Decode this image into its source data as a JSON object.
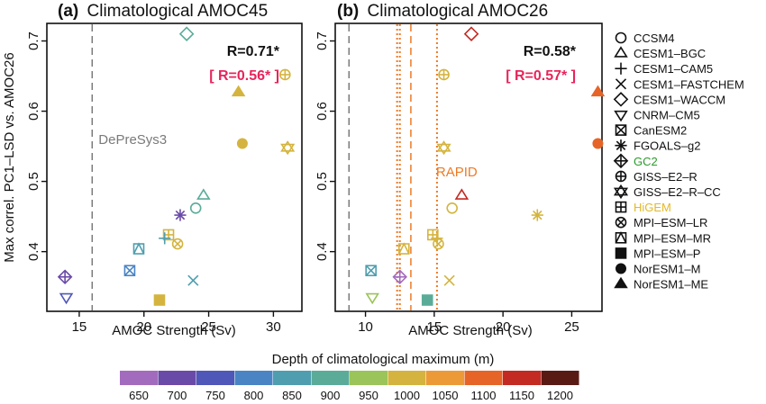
{
  "colors": {
    "depth_scale": {
      "650": "#a36bbd",
      "700": "#6a4aa8",
      "750": "#4f58b8",
      "800": "#4a84c4",
      "850": "#4f9eaf",
      "900": "#5aac99",
      "950": "#9bc45a",
      "1000": "#d4b43e",
      "1050": "#ec9a38",
      "1100": "#e66428",
      "1150": "#c22a22",
      "1200": "#5a1a14"
    },
    "annotation_obs": "#ee7a24",
    "annotation_model": "#7a7a7a",
    "r_bracket": "#e8245a",
    "gc2_label": "#2b9a2b",
    "higem_label": "#e2b82a"
  },
  "y_axis_label": "Max correl. PC1–LSD vs. AMOC26",
  "colorbar": {
    "title": "Depth of climatological maximum (m)",
    "ticks": [
      "650",
      "700",
      "750",
      "800",
      "850",
      "900",
      "950",
      "1000",
      "1050",
      "1100",
      "1150",
      "1200"
    ]
  },
  "legend": [
    {
      "name": "CCSM4",
      "marker": "circle-open",
      "label_color": "#111"
    },
    {
      "name": "CESM1–BGC",
      "marker": "triangle-open",
      "label_color": "#111"
    },
    {
      "name": "CESM1–CAM5",
      "marker": "plus",
      "label_color": "#111"
    },
    {
      "name": "CESM1–FASTCHEM",
      "marker": "cross",
      "label_color": "#111"
    },
    {
      "name": "CESM1–WACCM",
      "marker": "diamond-open",
      "label_color": "#111"
    },
    {
      "name": "CNRM–CM5",
      "marker": "triangle-down-open",
      "label_color": "#111"
    },
    {
      "name": "CanESM2",
      "marker": "square-cross",
      "label_color": "#111"
    },
    {
      "name": "FGOALS–g2",
      "marker": "asterisk",
      "label_color": "#111"
    },
    {
      "name": "GC2",
      "marker": "diamond-plus",
      "label_color": "#2b9a2b"
    },
    {
      "name": "GISS–E2–R",
      "marker": "circle-plus",
      "label_color": "#111"
    },
    {
      "name": "GISS–E2–R–CC",
      "marker": "star-of-david",
      "label_color": "#111"
    },
    {
      "name": "HiGEM",
      "marker": "square-plus",
      "label_color": "#e2b82a"
    },
    {
      "name": "MPI–ESM–LR",
      "marker": "circle-cross",
      "label_color": "#111"
    },
    {
      "name": "MPI–ESM–MR",
      "marker": "square-triangle",
      "label_color": "#111"
    },
    {
      "name": "MPI–ESM–P",
      "marker": "square-filled",
      "label_color": "#111"
    },
    {
      "name": "NorESM1–M",
      "marker": "circle-filled",
      "label_color": "#111"
    },
    {
      "name": "NorESM1–ME",
      "marker": "triangle-filled",
      "label_color": "#111"
    }
  ],
  "chart_data": [
    {
      "type": "scatter",
      "panel_tag": "(a)",
      "title": "Climatological AMOC45",
      "xlabel": "AMOC Strength (Sv)",
      "ylabel": "Max correl. PC1–LSD vs. AMOC26",
      "xlim": [
        12.5,
        32.2
      ],
      "ylim": [
        0.315,
        0.725
      ],
      "xticks": [
        15,
        20,
        25,
        30
      ],
      "yticks": [
        0.4,
        0.5,
        0.6,
        0.7
      ],
      "stats": {
        "r": "R=0.71*",
        "r_bracket": "[ R=0.56* ]"
      },
      "reference_lines": [
        {
          "label": "DePreSys3",
          "x": 16.0,
          "style": "dashed",
          "color": "#7a7a7a"
        }
      ],
      "points": [
        {
          "model": "CESM1–BGC",
          "x": 24.6,
          "y": 0.48,
          "depth": 900
        },
        {
          "model": "CESM1–WACCM",
          "x": 23.3,
          "y": 0.71,
          "depth": 900
        },
        {
          "model": "GISS–E2–R",
          "x": 30.9,
          "y": 0.652,
          "depth": 1000
        },
        {
          "model": "NorESM1–ME",
          "x": 27.3,
          "y": 0.627,
          "depth": 1000
        },
        {
          "model": "NorESM1–M",
          "x": 27.6,
          "y": 0.554,
          "depth": 1000
        },
        {
          "model": "GISS–E2–R–CC",
          "x": 31.1,
          "y": 0.548,
          "depth": 1000
        },
        {
          "model": "CCSM4",
          "x": 24.0,
          "y": 0.462,
          "depth": 900
        },
        {
          "model": "FGOALS–g2",
          "x": 22.8,
          "y": 0.452,
          "depth": 700
        },
        {
          "model": "HiGEM",
          "x": 21.9,
          "y": 0.424,
          "depth": 1000
        },
        {
          "model": "CESM1–CAM5",
          "x": 21.6,
          "y": 0.419,
          "depth": 850
        },
        {
          "model": "MPI–ESM–LR",
          "x": 22.6,
          "y": 0.411,
          "depth": 1000
        },
        {
          "model": "MPI–ESM–MR",
          "x": 19.6,
          "y": 0.404,
          "depth": 850
        },
        {
          "model": "CanESM2",
          "x": 18.9,
          "y": 0.373,
          "depth": 800
        },
        {
          "model": "GC2",
          "x": 13.9,
          "y": 0.364,
          "depth": 700
        },
        {
          "model": "CESM1–FASTCHEM",
          "x": 23.8,
          "y": 0.359,
          "depth": 850
        },
        {
          "model": "CNRM–CM5",
          "x": 14.0,
          "y": 0.335,
          "depth": 750
        },
        {
          "model": "MPI–ESM–P",
          "x": 21.2,
          "y": 0.331,
          "depth": 1000
        }
      ]
    },
    {
      "type": "scatter",
      "panel_tag": "(b)",
      "title": "Climatological AMOC26",
      "xlabel": "AMOC Strength (Sv)",
      "ylabel": "",
      "xlim": [
        7.8,
        27.2
      ],
      "ylim": [
        0.315,
        0.725
      ],
      "xticks": [
        10,
        15,
        20,
        25
      ],
      "yticks": [
        0.4,
        0.5,
        0.6,
        0.7
      ],
      "stats": {
        "r": "R=0.58*",
        "r_bracket": "[ R=0.57* ]"
      },
      "reference_lines": [
        {
          "label": "",
          "x": 8.8,
          "style": "dashed",
          "color": "#7a7a7a"
        },
        {
          "label": "",
          "x": 12.3,
          "style": "dotted",
          "color": "#ee7a24"
        },
        {
          "label": "",
          "x": 12.5,
          "style": "dotted",
          "color": "#ee7a24"
        },
        {
          "label": "RAPID",
          "x": 13.3,
          "style": "dashed",
          "color": "#ee7a24"
        },
        {
          "label": "",
          "x": 15.2,
          "style": "dotted",
          "color": "#ee7a24"
        }
      ],
      "points": [
        {
          "model": "CESM1–WACCM",
          "x": 17.7,
          "y": 0.71,
          "depth": 1150
        },
        {
          "model": "GISS–E2–R",
          "x": 15.7,
          "y": 0.652,
          "depth": 1000
        },
        {
          "model": "NorESM1–ME",
          "x": 26.9,
          "y": 0.627,
          "depth": 1100
        },
        {
          "model": "NorESM1–M",
          "x": 26.9,
          "y": 0.554,
          "depth": 1100
        },
        {
          "model": "GISS–E2–R–CC",
          "x": 15.7,
          "y": 0.548,
          "depth": 1000
        },
        {
          "model": "CESM1–BGC",
          "x": 17.0,
          "y": 0.48,
          "depth": 1150
        },
        {
          "model": "CCSM4",
          "x": 16.3,
          "y": 0.462,
          "depth": 1000
        },
        {
          "model": "FGOALS–g2",
          "x": 22.5,
          "y": 0.452,
          "depth": 1000
        },
        {
          "model": "HiGEM",
          "x": 14.9,
          "y": 0.424,
          "depth": 1000
        },
        {
          "model": "CESM1–CAM5",
          "x": 15.2,
          "y": 0.419,
          "depth": 1000
        },
        {
          "model": "MPI–ESM–LR",
          "x": 15.3,
          "y": 0.411,
          "depth": 1000
        },
        {
          "model": "MPI–ESM–MR",
          "x": 12.8,
          "y": 0.404,
          "depth": 1000
        },
        {
          "model": "CanESM2",
          "x": 10.4,
          "y": 0.373,
          "depth": 850
        },
        {
          "model": "GC2",
          "x": 12.5,
          "y": 0.364,
          "depth": 650
        },
        {
          "model": "CESM1–FASTCHEM",
          "x": 16.1,
          "y": 0.359,
          "depth": 1000
        },
        {
          "model": "CNRM–CM5",
          "x": 10.5,
          "y": 0.335,
          "depth": 950
        },
        {
          "model": "MPI–ESM–P",
          "x": 14.5,
          "y": 0.331,
          "depth": 900
        }
      ]
    }
  ]
}
